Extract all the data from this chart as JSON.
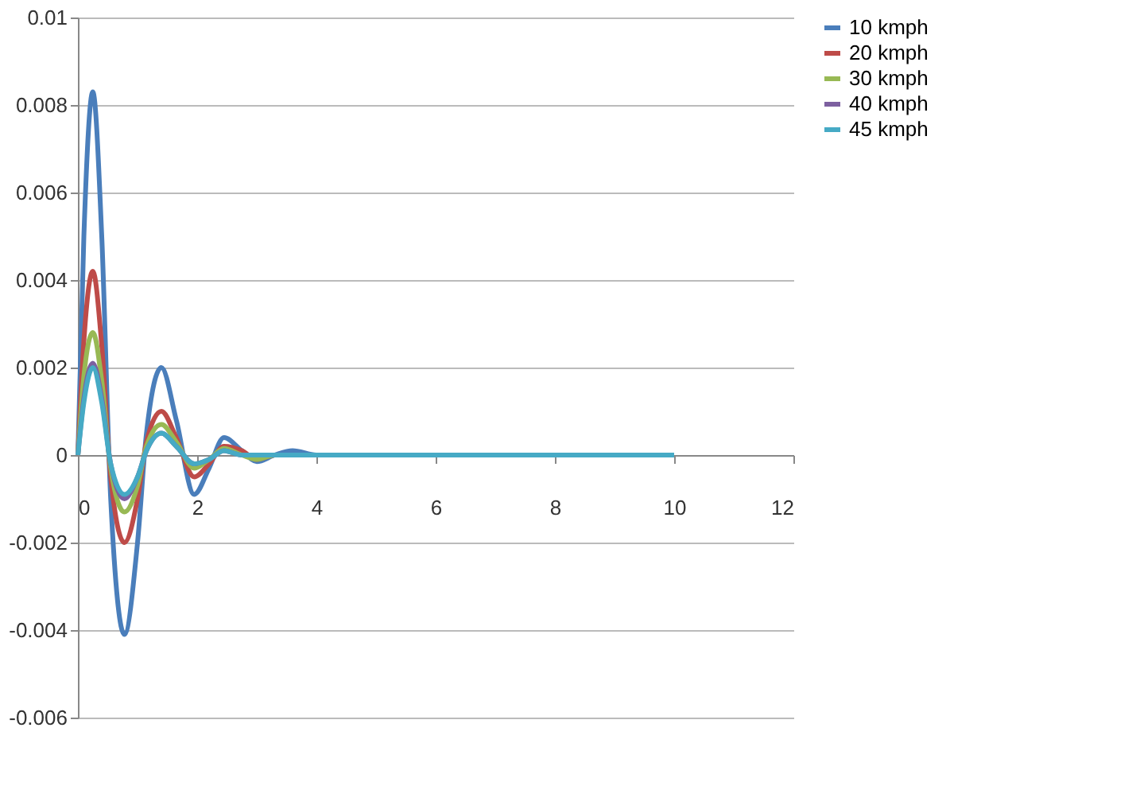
{
  "chart_data": {
    "type": "line",
    "x": [
      0,
      0.1,
      0.25,
      0.4,
      0.55,
      0.78,
      1.0,
      1.15,
      1.4,
      1.65,
      1.95,
      2.2,
      2.45,
      2.75,
      3.0,
      3.3,
      3.6,
      4,
      5,
      6,
      7,
      8,
      9,
      10
    ],
    "series": [
      {
        "name": "10 kmph",
        "color": "#4a7ebb",
        "values": [
          0,
          0.005,
          0.0083,
          0.005,
          -0.001,
          -0.0041,
          -0.002,
          0.0005,
          0.002,
          0.0008,
          -0.0009,
          -0.0003,
          0.0004,
          0.0001,
          -0.00015,
          0,
          0.0001,
          0,
          0,
          null,
          null,
          null,
          null,
          null
        ]
      },
      {
        "name": "20 kmph",
        "color": "#be4b48",
        "values": [
          0,
          0.0026,
          0.0042,
          0.0025,
          -0.0005,
          -0.002,
          -0.001,
          0.0003,
          0.001,
          0.0004,
          -0.0005,
          -0.0002,
          0.0002,
          0.0001,
          -0.0001,
          0,
          0,
          null,
          null,
          null,
          null,
          null,
          null,
          null
        ]
      },
      {
        "name": "30 kmph",
        "color": "#98b954",
        "values": [
          0,
          0.0018,
          0.0028,
          0.0017,
          -0.0003,
          -0.0013,
          -0.0007,
          0.0002,
          0.0007,
          0.0003,
          -0.0003,
          -0.0001,
          0.00015,
          0,
          -0.0001,
          0,
          0,
          null,
          null,
          null,
          null,
          null,
          null,
          null
        ]
      },
      {
        "name": "40 kmph",
        "color": "#7d60a0",
        "values": [
          0,
          0.0013,
          0.0021,
          0.0013,
          -0.0002,
          -0.001,
          -0.0005,
          0.0001,
          0.0005,
          0.0002,
          -0.0002,
          -0.0001,
          0.0001,
          0,
          0,
          0,
          0,
          null,
          null,
          null,
          null,
          null,
          null,
          null
        ]
      },
      {
        "name": "45 kmph",
        "color": "#46aac5",
        "values": [
          0,
          0.0012,
          0.002,
          0.0012,
          -0.0002,
          -0.0009,
          -0.0005,
          0.0001,
          0.0005,
          0.0002,
          -0.0002,
          -0.0001,
          0.0001,
          0,
          0,
          0,
          0,
          0,
          0,
          0,
          0,
          0,
          0,
          0
        ]
      }
    ],
    "xlim": [
      0,
      12
    ],
    "xticks": [
      0,
      2,
      4,
      6,
      8,
      10,
      12
    ],
    "ylim": [
      -0.006,
      0.01
    ],
    "yticks": [
      -0.006,
      -0.004,
      -0.002,
      0,
      0.002,
      0.004,
      0.006,
      0.008,
      0.01
    ],
    "grid": "y",
    "legend": "right",
    "marker": "none",
    "line_style": "solid"
  }
}
